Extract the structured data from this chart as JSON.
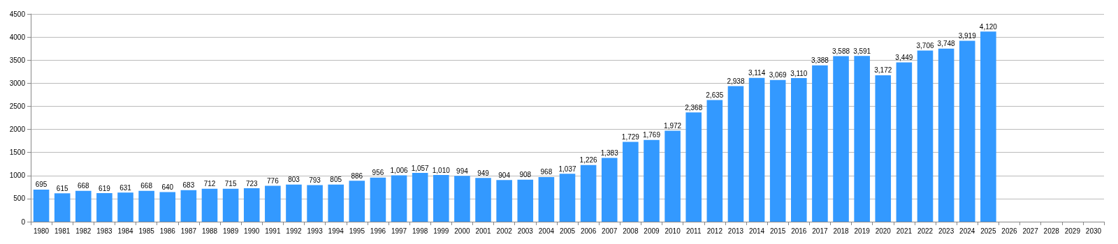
{
  "chart_data": {
    "type": "bar",
    "categories": [
      "1980",
      "1981",
      "1982",
      "1983",
      "1984",
      "1985",
      "1986",
      "1987",
      "1988",
      "1989",
      "1990",
      "1991",
      "1992",
      "1993",
      "1994",
      "1995",
      "1996",
      "1997",
      "1998",
      "1999",
      "2000",
      "2001",
      "2002",
      "2003",
      "2004",
      "2005",
      "2006",
      "2007",
      "2008",
      "2009",
      "2010",
      "2011",
      "2012",
      "2013",
      "2014",
      "2015",
      "2016",
      "2017",
      "2018",
      "2019",
      "2020",
      "2021",
      "2022",
      "2023",
      "2024",
      "2025",
      "2026",
      "2027",
      "2028",
      "2029",
      "2030"
    ],
    "values": [
      695,
      615,
      668,
      619,
      631,
      668,
      640,
      683,
      712,
      715,
      723,
      776,
      803,
      793,
      805,
      886,
      956,
      1006,
      1057,
      1010,
      994,
      949,
      904,
      908,
      968,
      1037,
      1226,
      1383,
      1729,
      1769,
      1972,
      2368,
      2635,
      2938,
      3114,
      3069,
      3110,
      3388,
      3588,
      3591,
      3172,
      3449,
      3706,
      3748,
      3919,
      4120,
      null,
      null,
      null,
      null,
      null
    ],
    "value_labels": [
      "695",
      "615",
      "668",
      "619",
      "631",
      "668",
      "640",
      "683",
      "712",
      "715",
      "723",
      "776",
      "803",
      "793",
      "805",
      "886",
      "956",
      "1,006",
      "1,057",
      "1,010",
      "994",
      "949",
      "904",
      "908",
      "968",
      "1,037",
      "1,226",
      "1,383",
      "1,729",
      "1,769",
      "1,972",
      "2,368",
      "2,635",
      "2,938",
      "3,114",
      "3,069",
      "3,110",
      "3,388",
      "3,588",
      "3,591",
      "3,172",
      "3,449",
      "3,706",
      "3,748",
      "3,919",
      "4,120",
      null,
      null,
      null,
      null,
      null
    ],
    "color": "#3399ff",
    "ylim": [
      0,
      4500
    ],
    "yticks": [
      0,
      500,
      1000,
      1500,
      2000,
      2500,
      3000,
      3500,
      4000,
      4500
    ],
    "grid": "y"
  }
}
